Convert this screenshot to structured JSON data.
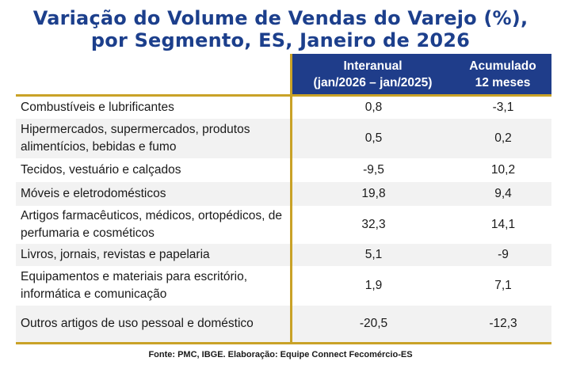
{
  "title": {
    "line1": "Variação do Volume de Vendas do Varejo (%),",
    "line2": "por Segmento, ES, Janeiro de 2026"
  },
  "table": {
    "headers": {
      "col1_line1": "Interanual",
      "col1_line2": "(jan/2026 – jan/2025)",
      "col2_line1": "Acumulado",
      "col2_line2": "12 meses"
    },
    "rows": [
      {
        "label": "Combustíveis e lubrificantes",
        "interanual": "0,8",
        "acumulado": "-3,1"
      },
      {
        "label": "Hipermercados, supermercados, produtos alimentícios, bebidas e fumo",
        "interanual": "0,5",
        "acumulado": "0,2"
      },
      {
        "label": "Tecidos, vestuário e calçados",
        "interanual": "-9,5",
        "acumulado": "10,2"
      },
      {
        "label": "Móveis e eletrodomésticos",
        "interanual": "19,8",
        "acumulado": "9,4"
      },
      {
        "label": "Artigos farmacêuticos, médicos, ortopédicos, de perfumaria e cosméticos",
        "interanual": "32,3",
        "acumulado": "14,1"
      },
      {
        "label": "Livros, jornais, revistas e papelaria",
        "interanual": "5,1",
        "acumulado": "-9"
      },
      {
        "label": "Equipamentos e materiais para escritório, informática e comunicação",
        "interanual": "1,9",
        "acumulado": "7,1"
      },
      {
        "label": "Outros artigos de uso pessoal e doméstico",
        "interanual": "-20,5",
        "acumulado": "-12,3"
      }
    ]
  },
  "footer": "Fonte: PMC, IBGE.  Elaboração: Equipe Connect Fecomércio-ES",
  "colors": {
    "title": "#1c3f8c",
    "header_bg": "#1f3d8a",
    "gold": "#c9a227",
    "alt_row": "#f2f2f2"
  }
}
